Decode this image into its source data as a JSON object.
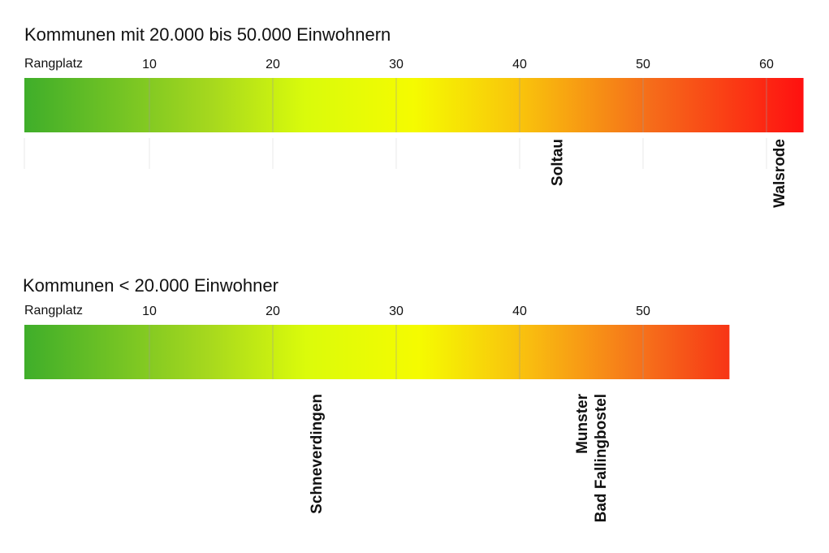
{
  "chart_data": [
    {
      "type": "bar",
      "title": "Kommunen mit 20.000 bis 50.000 Einwohnern",
      "xlabel": "Rangplatz",
      "ticks": [
        10,
        20,
        30,
        40,
        50,
        60
      ],
      "xlim": [
        1,
        63
      ],
      "colors": {
        "start": "#3fae2a",
        "mid": "#f5fb00",
        "end": "#ff1010"
      },
      "markers": [
        {
          "rank": 43,
          "label": "Soltau"
        },
        {
          "rank": 61,
          "label": "Walsrode"
        }
      ]
    },
    {
      "type": "bar",
      "title": "Kommunen < 20.000 Einwohner",
      "xlabel": "Rangplatz",
      "ticks": [
        10,
        20,
        30,
        40,
        50
      ],
      "xlim": [
        1,
        57
      ],
      "colors": {
        "start": "#3fae2a",
        "mid": "#f5fb00",
        "end": "#f73515"
      },
      "markers": [
        {
          "rank": 23.5,
          "label": "Schneverdingen"
        },
        {
          "rank": 45,
          "label": "Munster"
        },
        {
          "rank": 46.5,
          "label": "Bad Fallingbostel"
        }
      ]
    }
  ]
}
